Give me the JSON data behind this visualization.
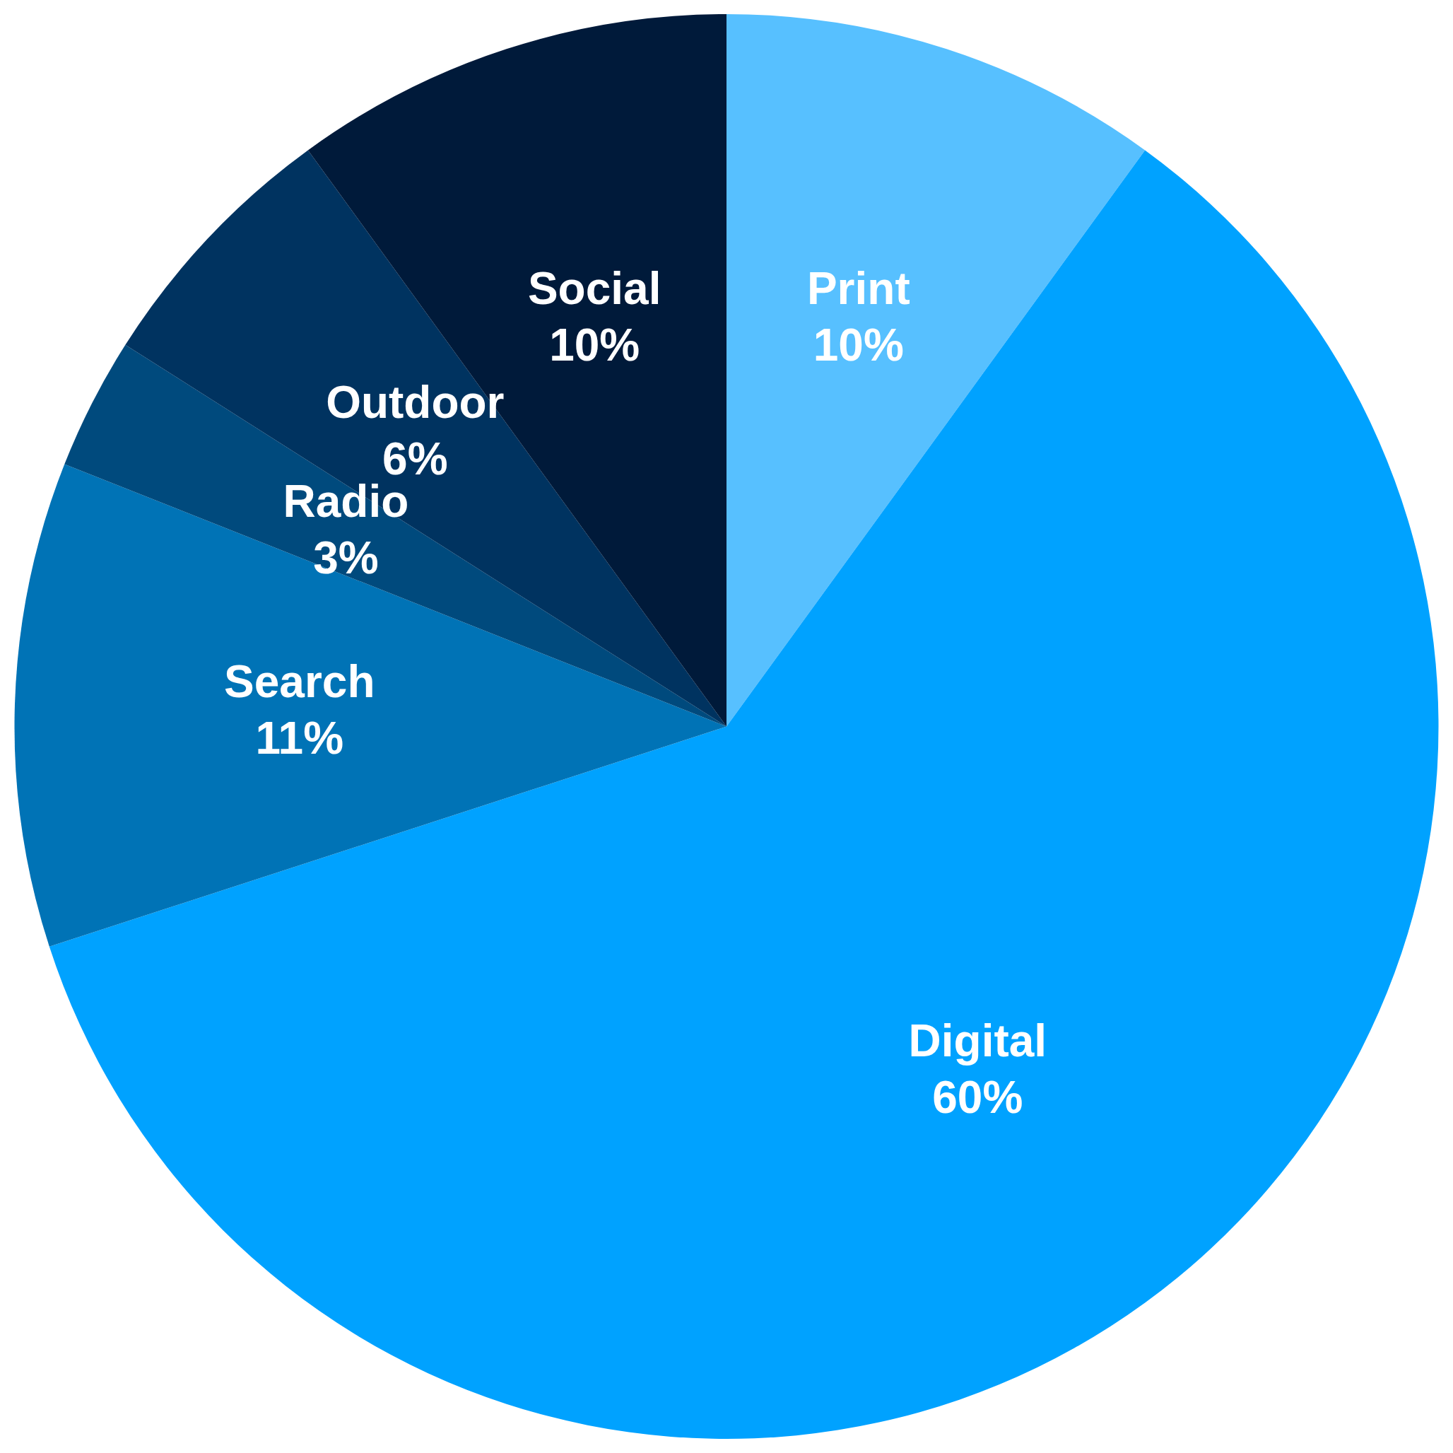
{
  "chart_data": {
    "type": "pie",
    "categories": [
      "Print",
      "Digital",
      "Search",
      "Radio",
      "Outdoor",
      "Social"
    ],
    "values": [
      10,
      60,
      11,
      3,
      6,
      10
    ],
    "colors": [
      "#57c0ff",
      "#00a2ff",
      "#0073b6",
      "#004a7d",
      "#003360",
      "#001a3a"
    ],
    "value_labels": [
      "10%",
      "60%",
      "11%",
      "3%",
      "6%",
      "10%"
    ],
    "legend": false
  }
}
